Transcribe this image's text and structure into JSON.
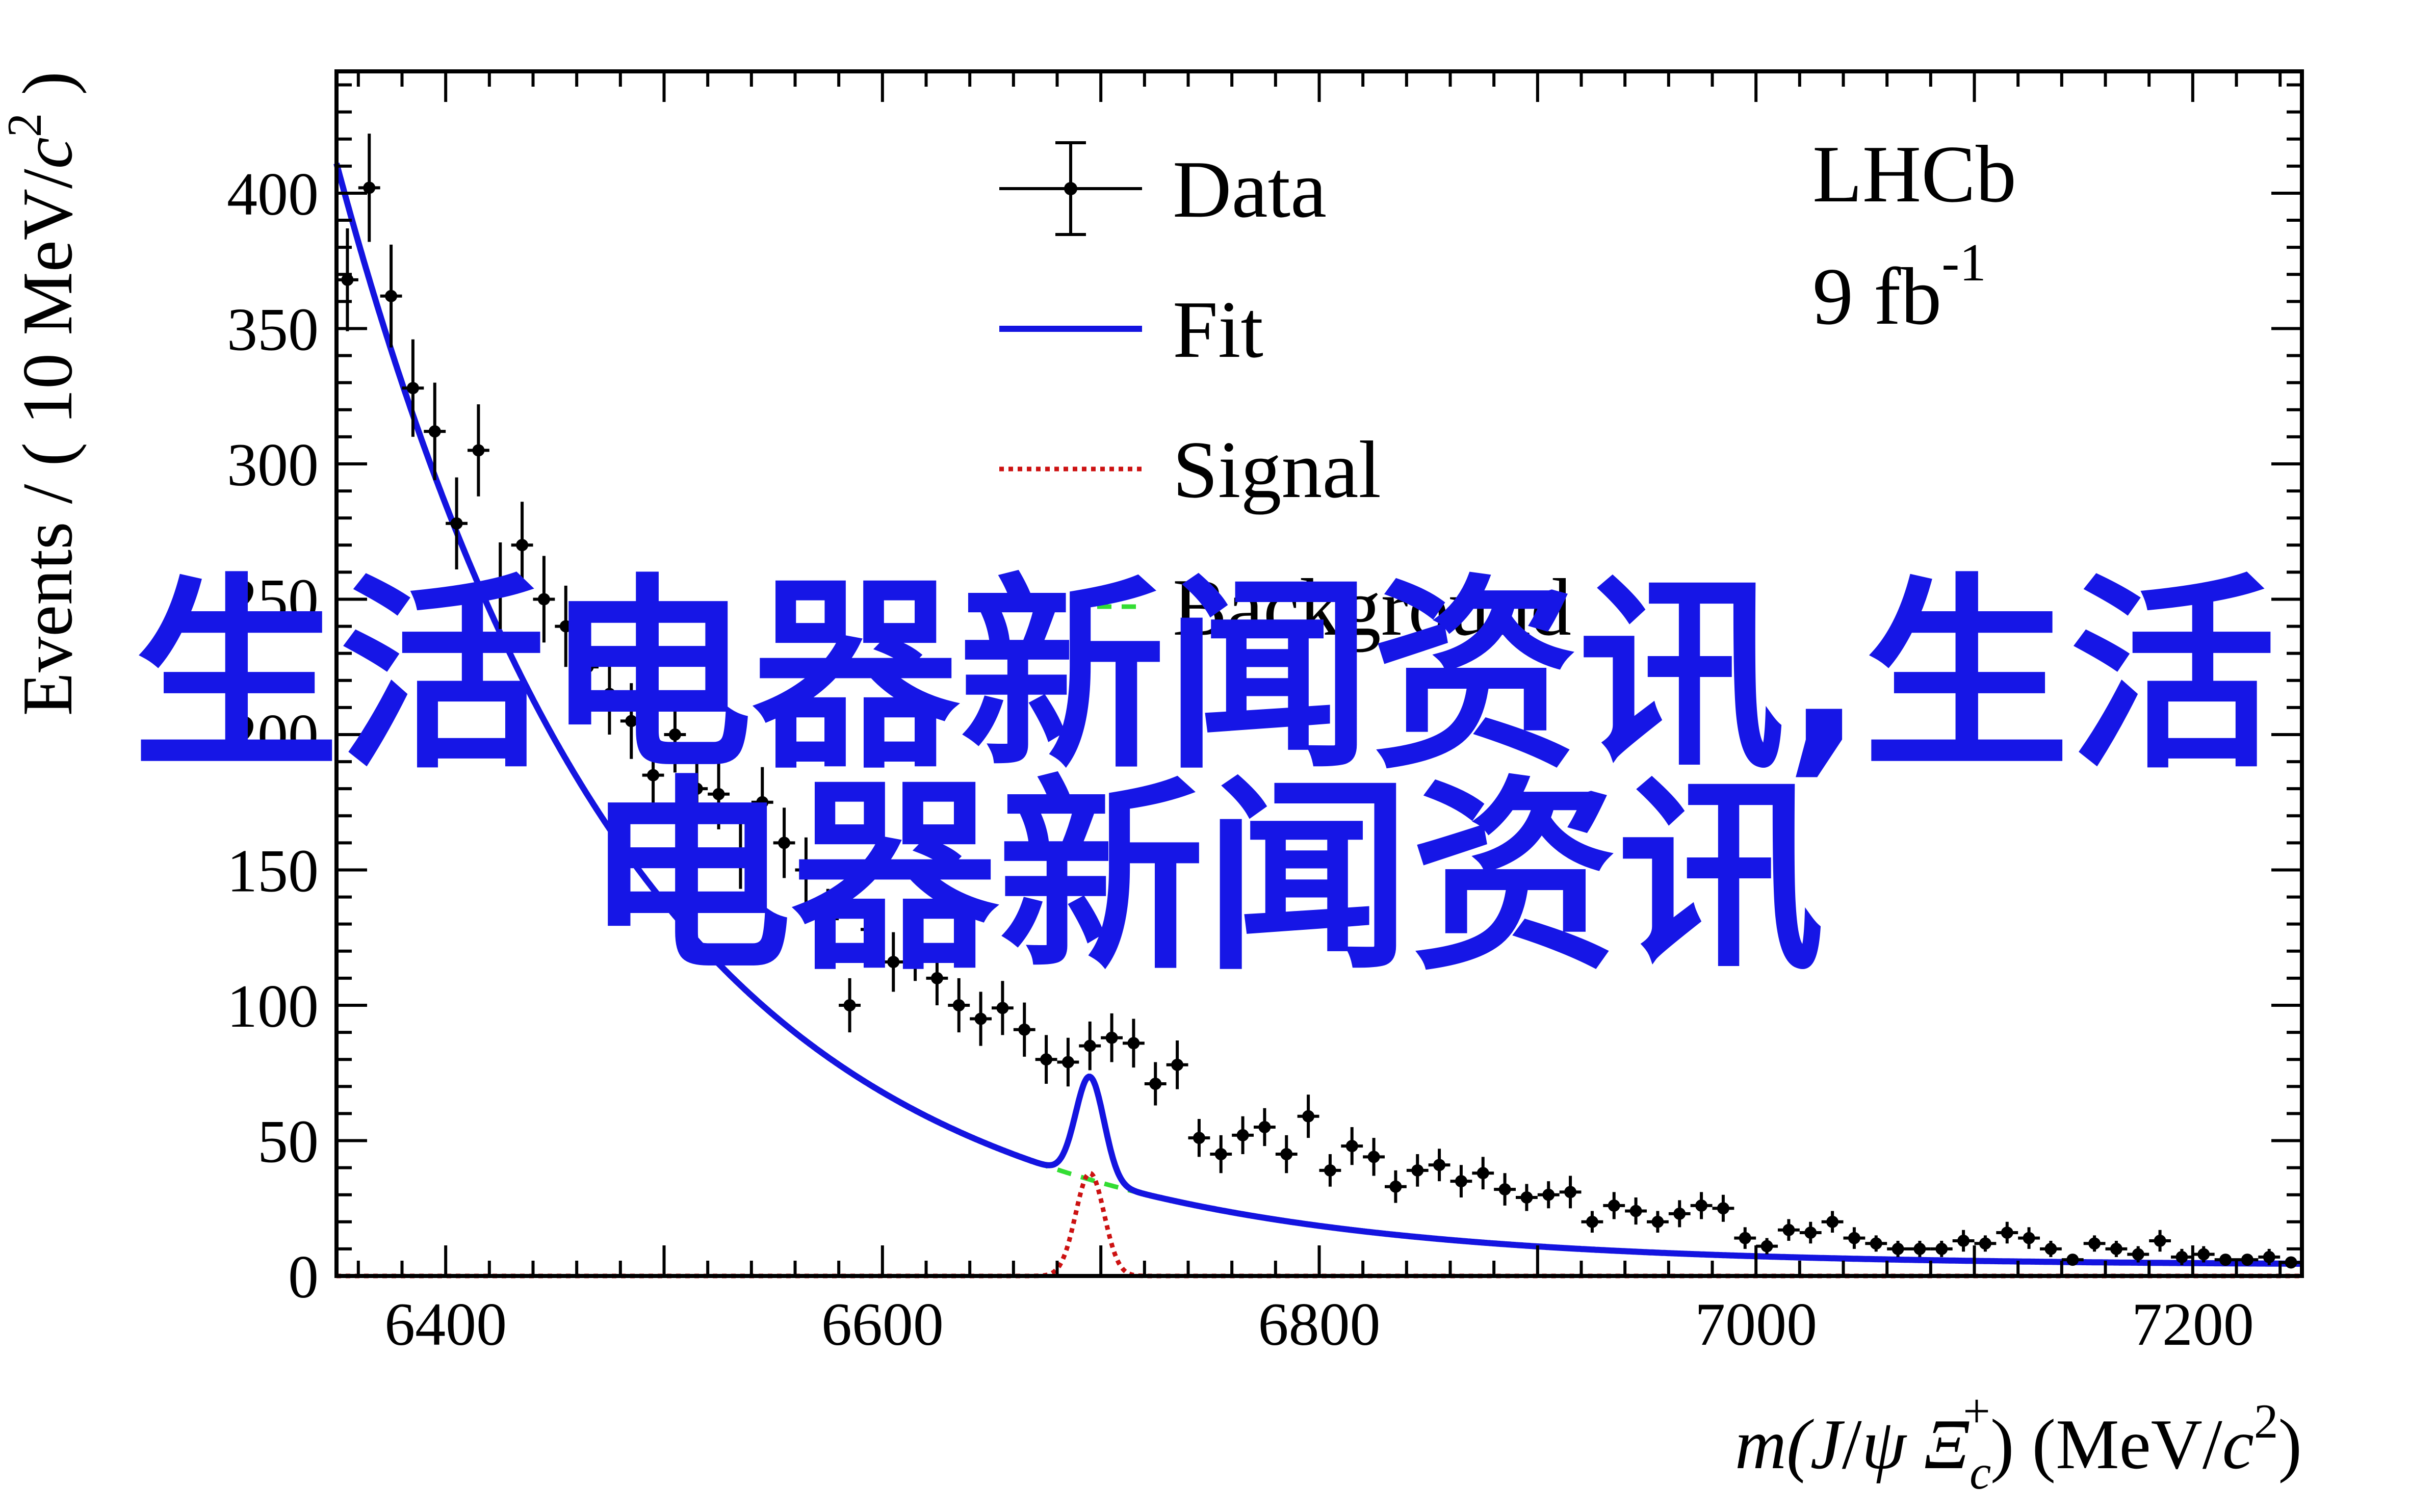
{
  "chart_data": {
    "type": "line",
    "xlabel_parts": [
      "m(",
      "J",
      "/",
      "ψ",
      " Ξ",
      "c",
      "+",
      ")",
      " (MeV/",
      "c",
      "2",
      ")"
    ],
    "ylabel_parts": [
      "Events / ( 10 MeV/",
      "c",
      "2",
      " )"
    ],
    "xlim": [
      6350,
      7250
    ],
    "ylim": [
      0,
      445
    ],
    "xticks": [
      6400,
      6600,
      6800,
      7000,
      7200
    ],
    "yticks": [
      0,
      50,
      100,
      150,
      200,
      250,
      300,
      350,
      400
    ],
    "annotation": {
      "experiment": "LHCb",
      "lumi": "9 fb",
      "lumi_exp": "-1"
    },
    "legend_position": "top-center",
    "legend": [
      {
        "label": "Data",
        "style": "errorbar-marker",
        "color": "#000000"
      },
      {
        "label": "Fit",
        "style": "solid",
        "color": "#1414e0"
      },
      {
        "label": "Signal",
        "style": "dotted",
        "color": "#cc1111"
      },
      {
        "label": "Background",
        "style": "dashed",
        "color": "#33dd33"
      }
    ],
    "data_points": {
      "x": [
        6355,
        6365,
        6375,
        6385,
        6395,
        6405,
        6415,
        6425,
        6435,
        6445,
        6455,
        6465,
        6475,
        6485,
        6495,
        6505,
        6515,
        6525,
        6535,
        6545,
        6555,
        6565,
        6575,
        6585,
        6595,
        6605,
        6615,
        6625,
        6635,
        6645,
        6655,
        6665,
        6675,
        6685,
        6695,
        6705,
        6715,
        6725,
        6735,
        6745,
        6755,
        6765,
        6775,
        6785,
        6795,
        6805,
        6815,
        6825,
        6835,
        6845,
        6855,
        6865,
        6875,
        6885,
        6895,
        6905,
        6915,
        6925,
        6935,
        6945,
        6955,
        6965,
        6975,
        6985,
        6995,
        7005,
        7015,
        7025,
        7035,
        7045,
        7055,
        7065,
        7075,
        7085,
        7095,
        7105,
        7115,
        7125,
        7135,
        7145,
        7155,
        7165,
        7175,
        7185,
        7195,
        7205,
        7215,
        7225,
        7235,
        7245
      ],
      "y": [
        368,
        402,
        362,
        328,
        312,
        278,
        305,
        255,
        270,
        250,
        240,
        225,
        215,
        205,
        185,
        200,
        180,
        178,
        155,
        175,
        160,
        150,
        132,
        100,
        128,
        116,
        120,
        110,
        100,
        95,
        99,
        91,
        80,
        79,
        85,
        88,
        86,
        71,
        78,
        51,
        45,
        52,
        55,
        45,
        59,
        39,
        48,
        44,
        33,
        39,
        41,
        35,
        38,
        32,
        29,
        30,
        31,
        20,
        26,
        24,
        20,
        23,
        26,
        25,
        14,
        11,
        17,
        16,
        20,
        14,
        12,
        10,
        10,
        10,
        13,
        12,
        16,
        14,
        10,
        6,
        12,
        10,
        8,
        13,
        7,
        8,
        6,
        6,
        7,
        5
      ],
      "err": [
        19,
        20,
        19,
        18,
        18,
        17,
        17,
        16,
        16,
        16,
        15,
        15,
        15,
        14,
        14,
        14,
        13,
        13,
        12,
        13,
        13,
        12,
        11,
        10,
        11,
        11,
        11,
        10,
        10,
        10,
        10,
        10,
        9,
        9,
        9,
        9,
        9,
        8,
        9,
        7,
        7,
        7,
        7,
        7,
        8,
        6,
        7,
        7,
        6,
        6,
        6,
        6,
        6,
        6,
        5,
        5,
        6,
        4,
        5,
        5,
        4,
        5,
        5,
        5,
        4,
        3,
        4,
        4,
        4,
        4,
        3,
        3,
        3,
        3,
        4,
        3,
        4,
        4,
        3,
        2,
        3,
        3,
        3,
        4,
        3,
        3,
        2,
        2,
        3,
        2
      ]
    },
    "background_model": {
      "formula": "A*exp(-(x-6350)/tau)+C",
      "A": 407,
      "tau": 135,
      "C": 4,
      "x": [
        6350,
        7250
      ]
    },
    "signal_model": {
      "shape": "gaussian",
      "mean": 6695,
      "sigma": 6.5,
      "peak_height": 38
    }
  },
  "overlay": {
    "line1": "生活电器新闻资讯,生活",
    "line2": "电器新闻资讯"
  }
}
